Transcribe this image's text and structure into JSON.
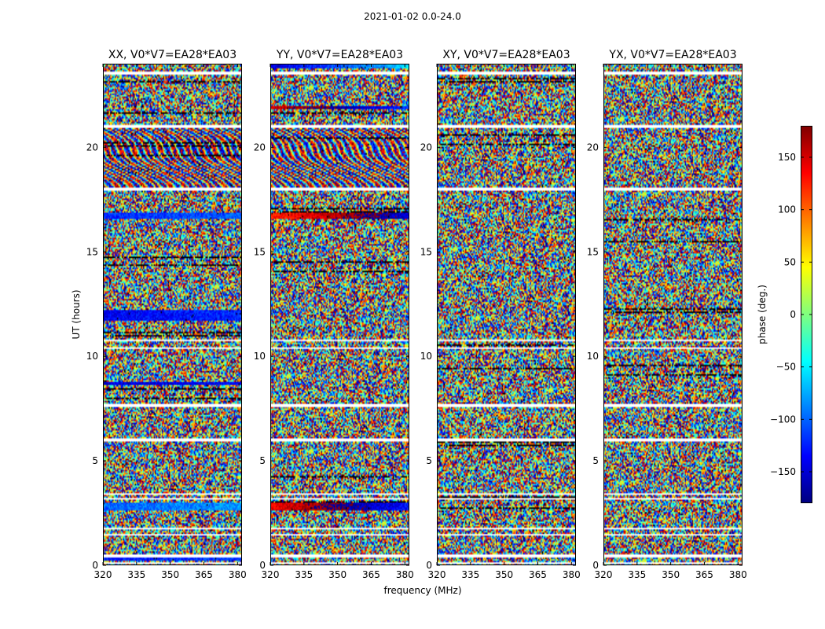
{
  "figure": {
    "title": "2021-01-02 0.0-24.0"
  },
  "chart_data": {
    "type": "heatmap",
    "title": "2021-01-02 0.0-24.0",
    "xlabel": "frequency (MHz)",
    "ylabel": "UT (hours)",
    "xlim": [
      320,
      382
    ],
    "ylim": [
      0,
      24
    ],
    "xticks": [
      320,
      335,
      350,
      365,
      380
    ],
    "yticks": [
      0,
      5,
      10,
      15,
      20
    ],
    "colorbar": {
      "label": "phase (deg.)",
      "range": [
        -180,
        180
      ],
      "ticks": [
        -150,
        -100,
        -50,
        0,
        50,
        100,
        150
      ],
      "tick_labels": [
        "−150",
        "−100",
        "−50",
        "0",
        "50",
        "100",
        "150"
      ],
      "colormap": "jet",
      "colors": [
        "#00007f",
        "#0000ff",
        "#007fff",
        "#00ffff",
        "#7fff7f",
        "#ffff00",
        "#ff7f00",
        "#ff0000",
        "#7f0000"
      ]
    },
    "flagged_ut_ranges": [
      [
        0.05,
        0.12
      ],
      [
        0.4,
        0.55
      ],
      [
        1.4,
        1.48
      ],
      [
        1.72,
        1.8
      ],
      [
        2.0,
        2.06
      ],
      [
        3.15,
        3.2
      ],
      [
        3.4,
        3.45
      ],
      [
        5.95,
        6.05
      ],
      [
        7.55,
        7.7
      ],
      [
        10.35,
        10.45
      ],
      [
        10.7,
        10.8
      ],
      [
        17.95,
        18.1
      ],
      [
        20.95,
        21.05
      ],
      [
        23.5,
        23.6
      ]
    ],
    "panels": [
      {
        "title": "XX, V0*V7=EA28*EA03",
        "bands": [
          {
            "ut": [
              0.2,
              0.38
            ],
            "phase": -130
          },
          {
            "ut": [
              2.6,
              3.0
            ],
            "phase": -100
          },
          {
            "ut": [
              11.7,
              12.2
            ],
            "phase": -140
          },
          {
            "ut": [
              16.6,
              16.9
            ],
            "phase": -120
          },
          {
            "ut": [
              8.65,
              8.8
            ],
            "phase": -150
          }
        ]
      },
      {
        "title": "YY, V0*V7=EA28*EA03",
        "bands": [
          {
            "ut": [
              2.6,
              3.0
            ],
            "phase": 140
          },
          {
            "ut": [
              16.6,
              16.9
            ],
            "phase": 120
          },
          {
            "ut": [
              21.8,
              22.0
            ],
            "phase": 150
          },
          {
            "ut": [
              23.8,
              24.0
            ],
            "phase": -150
          }
        ]
      },
      {
        "title": "XY, V0*V7=EA28*EA03",
        "bands": []
      },
      {
        "title": "YX, V0*V7=EA28*EA03",
        "bands": []
      }
    ]
  }
}
